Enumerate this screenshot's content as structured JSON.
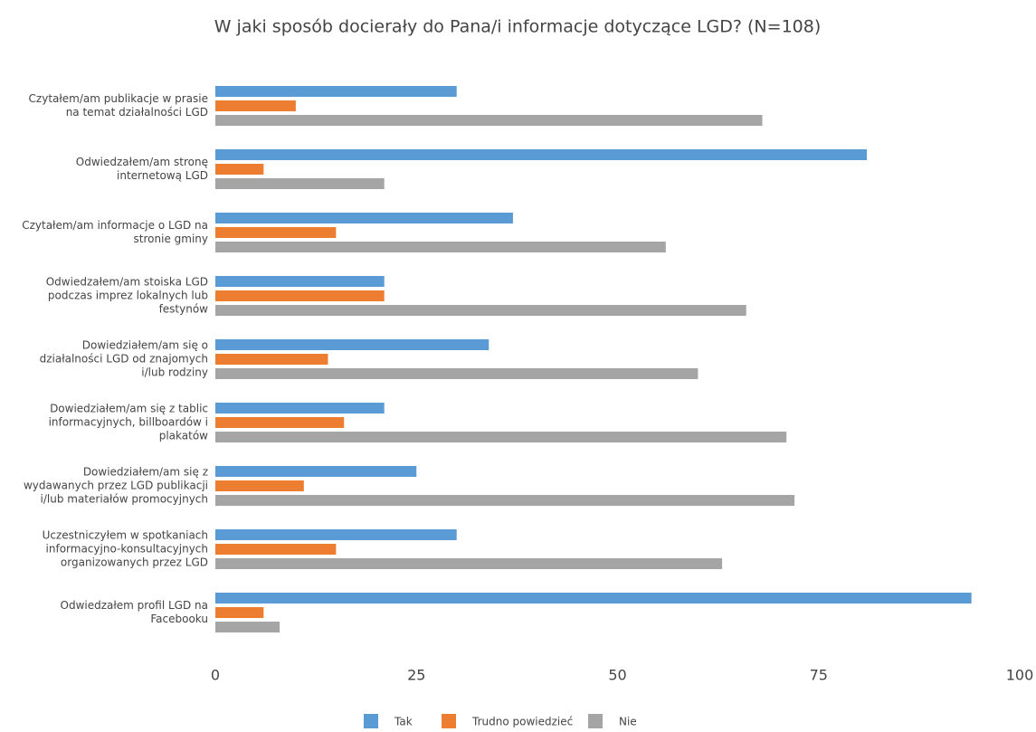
{
  "chart_data": {
    "type": "bar",
    "orientation": "horizontal",
    "title": "W jaki sposób docierały do Pana/i informacje dotyczące LGD? (N=108)",
    "categories": [
      [
        "Czytałem/am publikacje w prasie",
        "na temat działalności LGD"
      ],
      [
        "Odwiedzałem/am stronę",
        "internetową LGD"
      ],
      [
        "Czytałem/am informacje o LGD na",
        "stronie gminy"
      ],
      [
        "Odwiedzałem/am stoiska LGD",
        "podczas imprez lokalnych lub",
        "festynów"
      ],
      [
        "Dowiedziałem/am się o",
        "działalności LGD od znajomych",
        "i/lub rodziny"
      ],
      [
        "Dowiedziałem/am się z tablic",
        "informacyjnych, billboardów i",
        "plakatów"
      ],
      [
        "Dowiedziałem/am się z",
        "wydawanych przez LGD publikacji",
        "i/lub materiałów promocyjnych"
      ],
      [
        "Uczestniczyłem w spotkaniach",
        "informacyjno-konsultacyjnych",
        "organizowanych przez LGD"
      ],
      [
        "Odwiedzałem profil LGD na",
        "Facebooku"
      ]
    ],
    "series": [
      {
        "name": "Tak",
        "color": "#5b9bd5",
        "values": [
          30,
          81,
          37,
          21,
          34,
          21,
          25,
          30,
          94
        ]
      },
      {
        "name": "Trudno powiedzieć",
        "color": "#ed7d31",
        "values": [
          10,
          6,
          15,
          21,
          14,
          16,
          11,
          15,
          6
        ]
      },
      {
        "name": "Nie",
        "color": "#a5a5a5",
        "values": [
          68,
          21,
          56,
          66,
          60,
          71,
          72,
          63,
          8
        ]
      }
    ],
    "xlim": [
      0,
      100
    ],
    "xticks": [
      0,
      25,
      50,
      75,
      100
    ],
    "grid": false,
    "legend": "bottom"
  }
}
